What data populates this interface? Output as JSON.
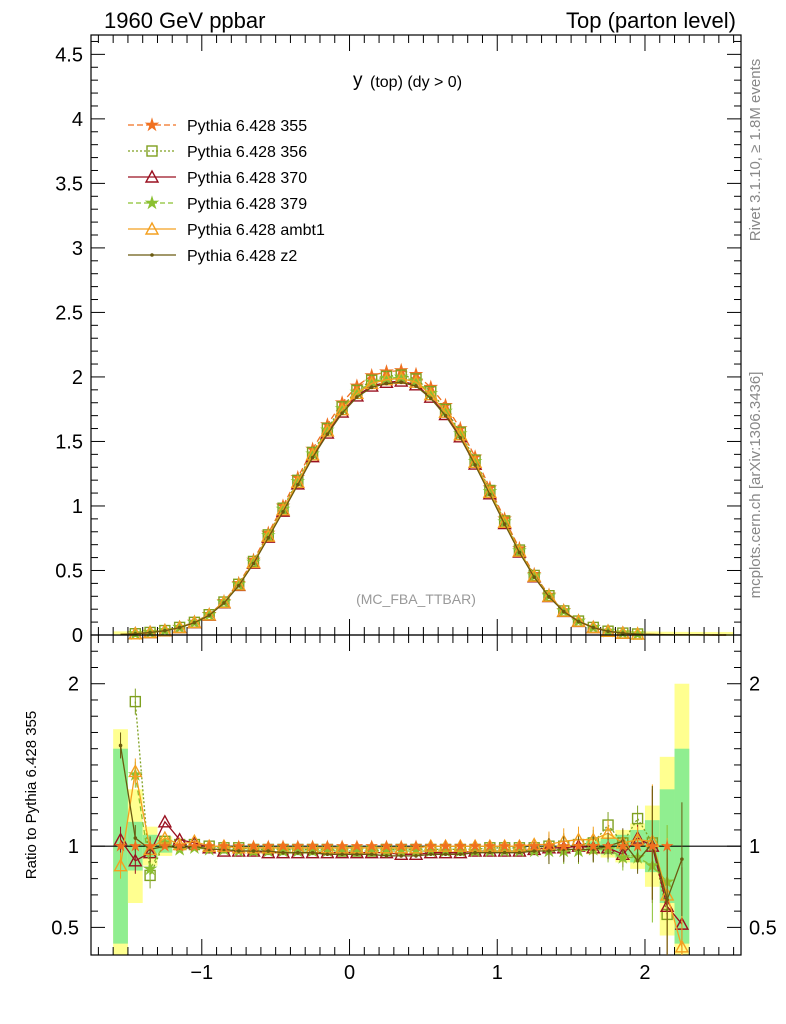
{
  "header": {
    "left": "1960 GeV ppbar",
    "right": "Top (parton level)"
  },
  "side": {
    "rivet": "Rivet 3.1.10, ≥ 1.8M events",
    "mcplots": "mcplots.cern.ch [arXiv:1306.3436]"
  },
  "chart_data": {
    "type": "line",
    "title_main": "y",
    "title_sub": "(top) (dy > 0)",
    "watermark": "(MC_FBA_TTBAR)",
    "ratio_ylabel": "Ratio to Pythia 6.428 355",
    "xlim": [
      -1.75,
      2.65
    ],
    "ylim_main": [
      0,
      4.65
    ],
    "ylim_ratio": [
      0.33,
      2.3
    ],
    "xticks": [
      {
        "v": -1,
        "label": "−1"
      },
      {
        "v": 0,
        "label": "0"
      },
      {
        "v": 1,
        "label": "1"
      },
      {
        "v": 2,
        "label": "2"
      }
    ],
    "yticks_main": [
      {
        "v": 0,
        "label": "0"
      },
      {
        "v": 0.5,
        "label": "0.5"
      },
      {
        "v": 1,
        "label": "1"
      },
      {
        "v": 1.5,
        "label": "1.5"
      },
      {
        "v": 2,
        "label": "2"
      },
      {
        "v": 2.5,
        "label": "2.5"
      },
      {
        "v": 3,
        "label": "3"
      },
      {
        "v": 3.5,
        "label": "3.5"
      },
      {
        "v": 4,
        "label": "4"
      },
      {
        "v": 4.5,
        "label": "4.5"
      }
    ],
    "yticks_ratio": [
      {
        "v": 0.5,
        "label": "0.5"
      },
      {
        "v": 1,
        "label": "1"
      },
      {
        "v": 2,
        "label": "2"
      }
    ],
    "x": [
      -1.55,
      -1.45,
      -1.35,
      -1.25,
      -1.15,
      -1.05,
      -0.95,
      -0.85,
      -0.75,
      -0.65,
      -0.55,
      -0.45,
      -0.35,
      -0.25,
      -0.15,
      -0.05,
      0.05,
      0.15,
      0.25,
      0.35,
      0.45,
      0.55,
      0.65,
      0.75,
      0.85,
      0.95,
      1.05,
      1.15,
      1.25,
      1.35,
      1.45,
      1.55,
      1.65,
      1.75,
      1.85,
      1.95,
      2.05,
      2.15,
      2.25,
      2.35,
      2.45,
      2.55
    ],
    "reference": [
      0.005,
      0.01,
      0.02,
      0.035,
      0.06,
      0.1,
      0.16,
      0.26,
      0.4,
      0.58,
      0.79,
      1.0,
      1.22,
      1.44,
      1.63,
      1.8,
      1.93,
      2.01,
      2.04,
      2.05,
      2.02,
      1.92,
      1.78,
      1.6,
      1.38,
      1.14,
      0.9,
      0.67,
      0.47,
      0.31,
      0.19,
      0.11,
      0.06,
      0.03,
      0.015,
      0.008,
      0.004,
      0.002,
      0.001,
      0.0006,
      0.0004,
      0.0003
    ],
    "series": [
      {
        "name": "Pythia 6.428 355",
        "color": "#f07020",
        "dash": "6,3",
        "marker": "star",
        "markerFill": "#f07020",
        "ratio": [
          null,
          null,
          null,
          null,
          null,
          null,
          null,
          null,
          null,
          null,
          null,
          null,
          null,
          null,
          null,
          null,
          null,
          null,
          null,
          null,
          null,
          null,
          null,
          null,
          null,
          null,
          null,
          null,
          null,
          null,
          null,
          null,
          null,
          null,
          null,
          null,
          null,
          null,
          null,
          null,
          null,
          null
        ]
      },
      {
        "name": "Pythia 6.428 356",
        "color": "#7fa020",
        "dash": "2,2",
        "marker": "square",
        "markerFill": "none",
        "ratio": [
          null,
          1.89,
          0.82,
          1.03,
          1.01,
          1.01,
          1.0,
          0.99,
          0.99,
          0.98,
          0.98,
          0.98,
          0.98,
          0.98,
          0.98,
          0.97,
          0.97,
          0.97,
          0.98,
          0.98,
          0.98,
          0.98,
          0.98,
          0.98,
          0.98,
          0.99,
          0.99,
          0.99,
          0.99,
          1.0,
          1.0,
          1.01,
          1.02,
          1.13,
          1.02,
          1.17,
          1.02,
          0.58,
          null,
          null,
          null,
          null
        ]
      },
      {
        "name": "Pythia 6.428 370",
        "color": "#9a1020",
        "dash": "",
        "marker": "triangle",
        "markerFill": "none",
        "ratio": [
          1.04,
          0.91,
          0.96,
          1.15,
          1.04,
          1.02,
          0.99,
          0.97,
          0.97,
          0.97,
          0.96,
          0.96,
          0.96,
          0.96,
          0.96,
          0.96,
          0.96,
          0.96,
          0.96,
          0.95,
          0.95,
          0.96,
          0.96,
          0.96,
          0.97,
          0.97,
          0.97,
          0.97,
          0.98,
          0.99,
          0.99,
          1.0,
          0.99,
          0.99,
          0.95,
          1.05,
          1.0,
          0.63,
          0.52,
          null,
          null,
          null
        ]
      },
      {
        "name": "Pythia 6.428 379",
        "color": "#8ac030",
        "dash": "5,3",
        "marker": "star",
        "markerFill": "#8ac030",
        "ratio": [
          null,
          1.44,
          0.86,
          1.02,
          0.98,
          0.99,
          0.98,
          0.98,
          0.97,
          0.97,
          0.97,
          0.97,
          0.97,
          0.97,
          0.97,
          0.97,
          0.97,
          0.97,
          0.97,
          0.97,
          0.97,
          0.97,
          0.97,
          0.97,
          0.97,
          0.97,
          0.97,
          0.97,
          0.97,
          0.97,
          0.97,
          0.97,
          0.98,
          0.98,
          0.93,
          0.93,
          0.88,
          0.78,
          null,
          null,
          null,
          null
        ]
      },
      {
        "name": "Pythia 6.428 ambt1",
        "color": "#f4a020",
        "dash": "",
        "marker": "triangle",
        "markerFill": "none",
        "ratio": [
          0.88,
          1.46,
          0.98,
          1.05,
          1.01,
          1.03,
          1.0,
          1.0,
          0.99,
          0.99,
          0.99,
          0.99,
          0.99,
          0.99,
          0.99,
          0.99,
          0.99,
          0.99,
          0.99,
          0.99,
          0.99,
          1.0,
          1.0,
          1.0,
          1.0,
          1.0,
          1.0,
          1.0,
          1.01,
          1.01,
          1.03,
          1.04,
          1.04,
          1.08,
          1.02,
          1.04,
          1.03,
          0.7,
          0.38,
          null,
          null,
          null
        ]
      },
      {
        "name": "Pythia 6.428 z2",
        "color": "#6a5a10",
        "dash": "",
        "marker": "dot",
        "markerFill": "#6a5a10",
        "ratio": [
          1.62,
          1.05,
          0.98,
          1.0,
          0.99,
          1.0,
          0.98,
          0.98,
          0.97,
          0.97,
          0.97,
          0.96,
          0.96,
          0.96,
          0.95,
          0.95,
          0.95,
          0.95,
          0.94,
          0.94,
          0.94,
          0.95,
          0.95,
          0.95,
          0.96,
          0.96,
          0.96,
          0.96,
          0.97,
          0.97,
          0.98,
          0.98,
          0.98,
          1.0,
          1.03,
          0.91,
          1.02,
          0.67,
          0.92,
          null,
          null,
          null
        ]
      }
    ],
    "uncertainty": {
      "centers": [
        -1.55,
        -1.45,
        -1.35,
        -1.25,
        1.65,
        1.75,
        1.85,
        1.95,
        2.05,
        2.15,
        2.25
      ],
      "yellow_half": [
        0.72,
        0.35,
        0.12,
        0.06,
        0.05,
        0.07,
        0.1,
        0.14,
        0.25,
        0.55,
        1.0
      ],
      "green_half": [
        0.6,
        0.15,
        0.07,
        0.04,
        0.03,
        0.05,
        0.07,
        0.1,
        0.16,
        0.35,
        0.6
      ]
    }
  }
}
